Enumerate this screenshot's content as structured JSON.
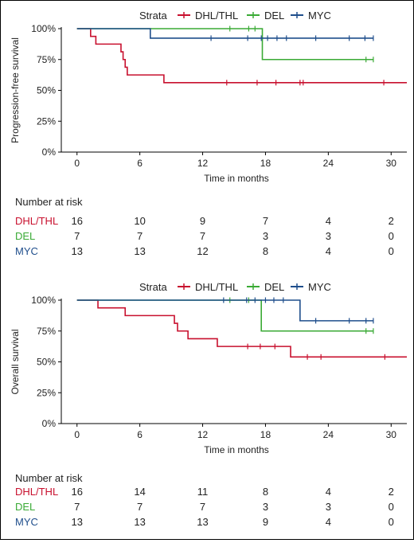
{
  "chart_data": [
    {
      "type": "line",
      "step": true,
      "legend_title": "Strata",
      "legend_position": "top",
      "ylabel": "Progression-free survival",
      "xlabel": "Time in months",
      "xticks": [
        0,
        6,
        12,
        18,
        24,
        30
      ],
      "yticks": [
        0,
        25,
        50,
        75,
        100
      ],
      "ytick_labels": [
        "0%",
        "25%",
        "50%",
        "75%",
        "100%"
      ],
      "xlim": [
        -1.5,
        31.5
      ],
      "ylim": [
        0,
        100
      ],
      "grid": false,
      "risk_table_title": "Number at risk",
      "risk_times": [
        0,
        6,
        12,
        18,
        24,
        30
      ],
      "series": [
        {
          "name": "DHL/THL",
          "color": "#c8102e",
          "steps": [
            [
              0,
              100
            ],
            [
              1.3,
              93.75
            ],
            [
              1.8,
              87.5
            ],
            [
              4.2,
              81.25
            ],
            [
              4.4,
              75
            ],
            [
              4.6,
              68.75
            ],
            [
              4.8,
              62.5
            ],
            [
              8.3,
              56.25
            ],
            [
              31.5,
              56.25
            ]
          ],
          "censor": [
            [
              14.3,
              56.25
            ],
            [
              17.2,
              56.25
            ],
            [
              19.0,
              56.25
            ],
            [
              21.3,
              56.25
            ],
            [
              21.6,
              56.25
            ],
            [
              29.3,
              56.25
            ]
          ],
          "at_risk": [
            16,
            10,
            9,
            7,
            4,
            2
          ]
        },
        {
          "name": "DEL",
          "color": "#3aaa35",
          "steps": [
            [
              0,
              100
            ],
            [
              17.7,
              75
            ],
            [
              28.3,
              75
            ]
          ],
          "censor": [
            [
              14.6,
              100
            ],
            [
              16.4,
              100
            ],
            [
              17.0,
              100
            ],
            [
              27.6,
              75
            ],
            [
              28.3,
              75
            ]
          ],
          "at_risk": [
            7,
            7,
            7,
            3,
            3,
            0
          ]
        },
        {
          "name": "MYC",
          "color": "#1f4e8c",
          "steps": [
            [
              0,
              100
            ],
            [
              7.0,
              92.3
            ],
            [
              28.3,
              92.3
            ]
          ],
          "censor": [
            [
              12.8,
              92.3
            ],
            [
              16.3,
              92.3
            ],
            [
              17.6,
              92.3
            ],
            [
              18.2,
              92.3
            ],
            [
              19.1,
              92.3
            ],
            [
              20.0,
              92.3
            ],
            [
              22.8,
              92.3
            ],
            [
              26.0,
              92.3
            ],
            [
              27.5,
              92.3
            ],
            [
              28.3,
              92.3
            ]
          ],
          "at_risk": [
            13,
            13,
            12,
            8,
            4,
            0
          ]
        }
      ]
    },
    {
      "type": "line",
      "step": true,
      "legend_title": "Strata",
      "legend_position": "top",
      "ylabel": "Overall survival",
      "xlabel": "Time in months",
      "xticks": [
        0,
        6,
        12,
        18,
        24,
        30
      ],
      "yticks": [
        0,
        25,
        50,
        75,
        100
      ],
      "ytick_labels": [
        "0%",
        "25%",
        "50%",
        "75%",
        "100%"
      ],
      "xlim": [
        -1.5,
        31.5
      ],
      "ylim": [
        0,
        100
      ],
      "grid": false,
      "risk_table_title": "Number at risk",
      "risk_times": [
        0,
        6,
        12,
        18,
        24,
        30
      ],
      "series": [
        {
          "name": "DHL/THL",
          "color": "#c8102e",
          "steps": [
            [
              0,
              100
            ],
            [
              2.0,
              93.75
            ],
            [
              4.6,
              87.5
            ],
            [
              9.3,
              81.25
            ],
            [
              9.6,
              75
            ],
            [
              10.6,
              68.75
            ],
            [
              13.4,
              62.5
            ],
            [
              20.4,
              54
            ],
            [
              31.5,
              54
            ]
          ],
          "censor": [
            [
              16.3,
              62.5
            ],
            [
              17.5,
              62.5
            ],
            [
              18.9,
              62.5
            ],
            [
              22.0,
              54
            ],
            [
              23.3,
              54
            ],
            [
              29.4,
              54
            ]
          ],
          "at_risk": [
            16,
            14,
            11,
            8,
            4,
            2
          ]
        },
        {
          "name": "DEL",
          "color": "#3aaa35",
          "steps": [
            [
              0,
              100
            ],
            [
              17.6,
              75
            ],
            [
              28.3,
              75
            ]
          ],
          "censor": [
            [
              14.6,
              100
            ],
            [
              16.4,
              100
            ],
            [
              27.6,
              75
            ],
            [
              28.3,
              75
            ]
          ],
          "at_risk": [
            7,
            7,
            7,
            3,
            3,
            0
          ]
        },
        {
          "name": "MYC",
          "color": "#1f4e8c",
          "steps": [
            [
              0,
              100
            ],
            [
              21.3,
              83.3
            ],
            [
              28.3,
              83.3
            ]
          ],
          "censor": [
            [
              14.0,
              100
            ],
            [
              16.2,
              100
            ],
            [
              17.0,
              100
            ],
            [
              18.0,
              100
            ],
            [
              18.8,
              100
            ],
            [
              19.7,
              100
            ],
            [
              22.8,
              83.3
            ],
            [
              26.0,
              83.3
            ],
            [
              27.6,
              83.3
            ],
            [
              28.3,
              83.3
            ]
          ],
          "at_risk": [
            13,
            13,
            13,
            9,
            4,
            0
          ]
        }
      ]
    }
  ]
}
